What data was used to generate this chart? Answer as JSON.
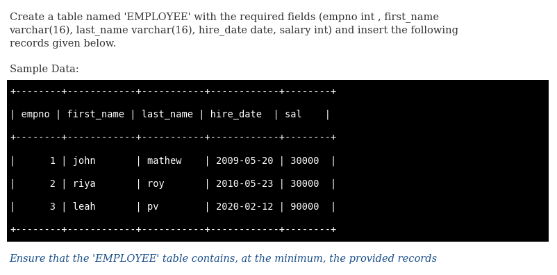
{
  "title_line1": "Create a table named 'EMPLOYEE' with the required fields (empno int , first_name",
  "title_line2": "varchar(16), last_name varchar(16), hire_date date, salary int) and insert the following",
  "title_line3": "records given below.",
  "sample_label": "Sample Data:",
  "footer_text": "Ensure that the 'EMPLOYEE' table contains, at the minimum, the provided records",
  "table_bg": "#000000",
  "table_fg": "#ffffff",
  "separator": "+--------+------------+-----------+------------+--------+",
  "header_line": "| empno | first_name | last_name | hire_date  | sal    |",
  "data_rows": [
    "|      1 | john       | mathew    | 2009-05-20 | 30000  |",
    "|      2 | riya       | roy       | 2010-05-23 | 30000  |",
    "|      3 | leah       | pv        | 2020-02-12 | 90000  |"
  ],
  "bg_color": "#ffffff",
  "title_color": "#333333",
  "footer_color": "#1a4f8a",
  "body_font_size": 10.5,
  "mono_font_size": 9.8,
  "sample_font_size": 10.5
}
